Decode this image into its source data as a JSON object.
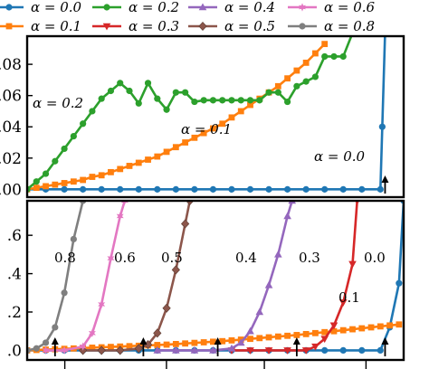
{
  "chart_data": [
    {
      "type": "line",
      "panel": "top",
      "x": [
        0,
        1,
        2,
        3,
        4,
        5,
        6,
        7,
        8,
        9,
        10,
        11,
        12,
        13,
        14,
        15,
        16,
        17,
        18,
        19,
        20,
        21,
        22,
        23,
        24,
        25,
        26,
        27,
        28,
        29,
        30,
        31,
        32,
        33,
        34,
        35,
        36,
        37,
        38
      ],
      "xlim": [
        0,
        40.5
      ],
      "ylim": [
        -0.005,
        0.098
      ],
      "ytick_labels": [
        ".00",
        ".02",
        ".04",
        ".06",
        ".08"
      ],
      "ytick_values": [
        0.0,
        0.02,
        0.04,
        0.06,
        0.08
      ],
      "series": [
        {
          "name": "α = 0.0",
          "color": "#1f77b4",
          "marker": "circle",
          "x": [
            0,
            2,
            4,
            6,
            8,
            10,
            12,
            14,
            16,
            18,
            20,
            22,
            24,
            26,
            28,
            30,
            32,
            34,
            36,
            38,
            38.2,
            38.5
          ],
          "y": [
            0,
            0,
            0,
            0,
            0,
            0,
            0,
            0,
            0,
            0,
            0,
            0,
            0,
            0,
            0,
            0,
            0,
            0,
            0,
            0,
            0.04,
            0.1
          ]
        },
        {
          "name": "α = 0.1",
          "color": "#ff7f0e",
          "marker": "square",
          "x": [
            0,
            1,
            2,
            3,
            4,
            5,
            6,
            7,
            8,
            9,
            10,
            11,
            12,
            13,
            14,
            15,
            16,
            17,
            18,
            19,
            20,
            21,
            22,
            23,
            24,
            25,
            26,
            27,
            28,
            29,
            30,
            31,
            32
          ],
          "y": [
            0.0,
            0.001,
            0.002,
            0.003,
            0.004,
            0.005,
            0.006,
            0.008,
            0.009,
            0.011,
            0.013,
            0.015,
            0.017,
            0.019,
            0.021,
            0.024,
            0.027,
            0.03,
            0.033,
            0.036,
            0.039,
            0.042,
            0.046,
            0.05,
            0.054,
            0.058,
            0.062,
            0.066,
            0.071,
            0.076,
            0.081,
            0.087,
            0.093
          ]
        },
        {
          "name": "α = 0.2",
          "color": "#2ca02c",
          "marker": "circle",
          "x": [
            0,
            1,
            2,
            3,
            4,
            5,
            6,
            7,
            8,
            9,
            10,
            11,
            12,
            13,
            14,
            15,
            16,
            17,
            18,
            19,
            20,
            21,
            22,
            23,
            24,
            25,
            26,
            27,
            28,
            29,
            30,
            31,
            32,
            33,
            34,
            35
          ],
          "y": [
            0.0,
            0.005,
            0.01,
            0.018,
            0.026,
            0.034,
            0.042,
            0.05,
            0.058,
            0.063,
            0.068,
            0.063,
            0.055,
            0.068,
            0.058,
            0.051,
            0.062,
            0.062,
            0.056,
            0.057,
            0.057,
            0.057,
            0.057,
            0.057,
            0.057,
            0.057,
            0.062,
            0.062,
            0.056,
            0.066,
            0.069,
            0.072,
            0.085,
            0.085,
            0.085,
            0.1
          ]
        }
      ],
      "annotations": [
        "α = 0.2",
        "α = 0.1",
        "α = 0.0"
      ]
    },
    {
      "type": "line",
      "panel": "bottom",
      "xlim": [
        0,
        40.5
      ],
      "ylim": [
        -0.05,
        0.78
      ],
      "ytick_labels": [
        ".0",
        ".2",
        ".4",
        ".6"
      ],
      "ytick_values": [
        0.0,
        0.2,
        0.4,
        0.6
      ],
      "series": [
        {
          "name": "α = 0.0",
          "color": "#1f77b4",
          "marker": "circle",
          "x": [
            0,
            2,
            4,
            6,
            8,
            10,
            12,
            14,
            16,
            18,
            20,
            22,
            24,
            26,
            28,
            30,
            32,
            34,
            36,
            38,
            39,
            40,
            40.5
          ],
          "y": [
            0,
            0,
            0,
            0,
            0,
            0,
            0,
            0,
            0,
            0,
            0,
            0,
            0,
            0,
            0,
            0,
            0,
            0,
            0,
            0,
            0.12,
            0.35,
            0.78
          ]
        },
        {
          "name": "α = 0.1",
          "color": "#ff7f0e",
          "marker": "square",
          "x": [
            0,
            1,
            2,
            3,
            4,
            5,
            6,
            7,
            8,
            9,
            10,
            11,
            12,
            13,
            14,
            15,
            16,
            17,
            18,
            19,
            20,
            21,
            22,
            23,
            24,
            25,
            26,
            27,
            28,
            29,
            30,
            31,
            32,
            33,
            34,
            35,
            36,
            37,
            38,
            39,
            40
          ],
          "y": [
            0.0,
            0.002,
            0.004,
            0.006,
            0.008,
            0.01,
            0.012,
            0.014,
            0.016,
            0.018,
            0.02,
            0.022,
            0.024,
            0.026,
            0.028,
            0.03,
            0.033,
            0.036,
            0.039,
            0.042,
            0.045,
            0.048,
            0.052,
            0.056,
            0.06,
            0.064,
            0.068,
            0.072,
            0.076,
            0.08,
            0.085,
            0.09,
            0.095,
            0.1,
            0.105,
            0.11,
            0.115,
            0.12,
            0.125,
            0.13,
            0.135
          ]
        },
        {
          "name": "α = 0.2",
          "color": "#2ca02c",
          "marker": "circle",
          "x": [],
          "y": []
        },
        {
          "name": "α = 0.3",
          "color": "#d62728",
          "marker": "triangle-down",
          "x": [
            22,
            24,
            26,
            28,
            30,
            31,
            32,
            33,
            34,
            35,
            35.5
          ],
          "y": [
            0,
            0,
            0,
            0,
            0,
            0.02,
            0.06,
            0.13,
            0.25,
            0.45,
            0.78
          ]
        },
        {
          "name": "α = 0.4",
          "color": "#9467bd",
          "marker": "triangle-up",
          "x": [
            14,
            16,
            18,
            20,
            22,
            23,
            24,
            25,
            26,
            27,
            28,
            28.5
          ],
          "y": [
            0,
            0,
            0,
            0,
            0.01,
            0.04,
            0.1,
            0.2,
            0.34,
            0.5,
            0.7,
            0.78
          ]
        },
        {
          "name": "α = 0.5",
          "color": "#8c564b",
          "marker": "diamond",
          "x": [
            6,
            8,
            10,
            12,
            13,
            14,
            15,
            16,
            17,
            17.5
          ],
          "y": [
            0,
            0,
            0,
            0.01,
            0.03,
            0.09,
            0.22,
            0.42,
            0.66,
            0.78
          ]
        },
        {
          "name": "α = 0.6",
          "color": "#e377c2",
          "marker": "star",
          "x": [
            2,
            4,
            6,
            7,
            8,
            9,
            10,
            10.5
          ],
          "y": [
            0,
            0,
            0.02,
            0.09,
            0.24,
            0.48,
            0.7,
            0.78
          ]
        },
        {
          "name": "α = 0.8",
          "color": "#7f7f7f",
          "marker": "circle",
          "x": [
            0,
            1,
            2,
            3,
            4,
            5,
            6
          ],
          "y": [
            0,
            0.01,
            0.04,
            0.12,
            0.3,
            0.58,
            0.78
          ]
        }
      ],
      "annotations": [
        "0.8",
        "0.6",
        "0.5",
        "0.4",
        "0.3",
        "0.0",
        "0.1"
      ],
      "arrows_x": [
        3,
        12.5,
        20.5,
        29,
        38.5
      ]
    }
  ],
  "legend": {
    "placement": "top",
    "entries": [
      "α = 0.0",
      "α = 0.2",
      "α = 0.4",
      "α = 0.6",
      "α = 0.1",
      "α = 0.3",
      "α = 0.5",
      "α = 0.8"
    ],
    "colors": [
      "#1f77b4",
      "#2ca02c",
      "#9467bd",
      "#e377c2",
      "#ff7f0e",
      "#d62728",
      "#8c564b",
      "#7f7f7f"
    ],
    "markers": [
      "circle",
      "circle",
      "triangle-up",
      "star",
      "square",
      "triangle-down",
      "diamond",
      "circle"
    ]
  }
}
